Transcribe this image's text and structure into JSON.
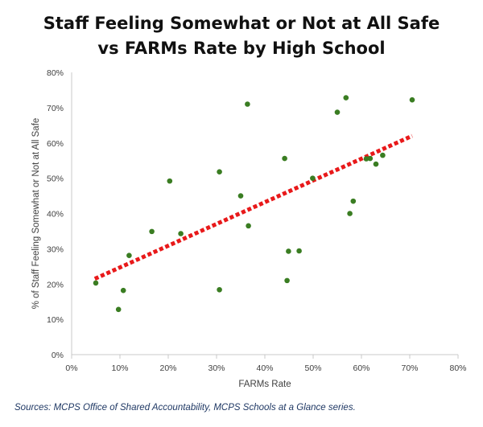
{
  "title_lines": [
    "Staff Feeling Somewhat or Not at All Safe",
    "vs FARMs Rate by High School"
  ],
  "source": "Sources: MCPS Office of Shared Accountability, MCPS Schools at a Glance series.",
  "colors": {
    "point": "#3a7d22",
    "trendline": "#e8191a",
    "axis": "#c8c8c8",
    "text": "#404040"
  },
  "chart_data": {
    "type": "scatter",
    "title": "Staff Feeling Somewhat or Not at All Safe vs FARMs Rate by High School",
    "xlabel": "FARMs Rate",
    "ylabel": "% of Staff Feeling Somewhat or Not at All Safe",
    "xlim": [
      0,
      80
    ],
    "ylim": [
      0,
      80
    ],
    "x_ticks": [
      "0%",
      "10%",
      "20%",
      "30%",
      "40%",
      "50%",
      "60%",
      "70%",
      "80%"
    ],
    "y_ticks": [
      "0%",
      "10%",
      "20%",
      "30%",
      "40%",
      "50%",
      "60%",
      "70%",
      "80%"
    ],
    "grid": false,
    "legend": "none",
    "points": [
      {
        "x": 5.0,
        "y": 20.3
      },
      {
        "x": 9.7,
        "y": 12.8
      },
      {
        "x": 10.7,
        "y": 18.2
      },
      {
        "x": 11.9,
        "y": 28.1
      },
      {
        "x": 16.6,
        "y": 34.9
      },
      {
        "x": 20.3,
        "y": 49.2
      },
      {
        "x": 22.6,
        "y": 34.3
      },
      {
        "x": 30.6,
        "y": 51.8
      },
      {
        "x": 30.6,
        "y": 18.4
      },
      {
        "x": 35.0,
        "y": 45.0
      },
      {
        "x": 36.4,
        "y": 71.0
      },
      {
        "x": 36.6,
        "y": 36.5
      },
      {
        "x": 44.1,
        "y": 55.6
      },
      {
        "x": 44.6,
        "y": 21.0
      },
      {
        "x": 44.9,
        "y": 29.3
      },
      {
        "x": 47.1,
        "y": 29.4
      },
      {
        "x": 49.9,
        "y": 50.0
      },
      {
        "x": 55.0,
        "y": 68.7
      },
      {
        "x": 56.8,
        "y": 72.8
      },
      {
        "x": 57.6,
        "y": 40.0
      },
      {
        "x": 58.3,
        "y": 43.5
      },
      {
        "x": 61.0,
        "y": 55.5
      },
      {
        "x": 61.8,
        "y": 55.6
      },
      {
        "x": 63.0,
        "y": 54.0
      },
      {
        "x": 64.4,
        "y": 56.5
      },
      {
        "x": 70.5,
        "y": 72.2
      }
    ],
    "trendline": {
      "type": "linear",
      "x": [
        4.8,
        70.5
      ],
      "y": [
        21.5,
        62.0
      ]
    }
  }
}
